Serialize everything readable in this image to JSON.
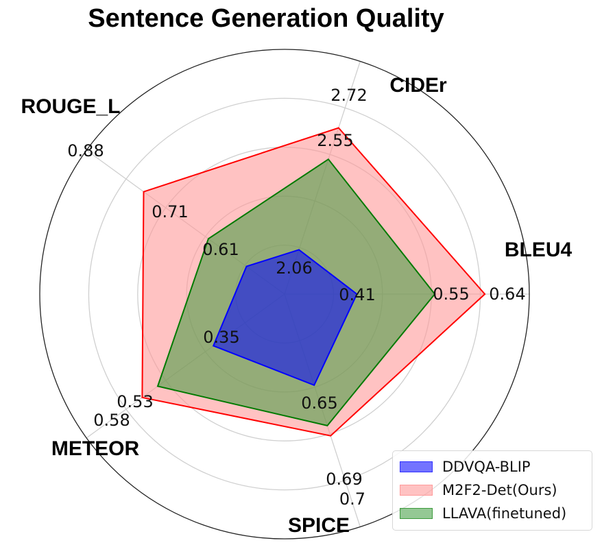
{
  "chart_data": {
    "type": "radar",
    "title": "Sentence Generation Quality",
    "axes": [
      {
        "name": "BLEU4",
        "min": 0.28,
        "max": 0.72
      },
      {
        "name": "CIDEr",
        "min": 1.82,
        "max": 3.08
      },
      {
        "name": "ROUGE_L",
        "min": 0.51,
        "max": 1.03
      },
      {
        "name": "METEOR",
        "min": 0.12,
        "max": 0.76
      },
      {
        "name": "SPICE",
        "min": 0.56,
        "max": 0.79
      }
    ],
    "series": [
      {
        "name": "DDVQA-BLIP",
        "values": [
          0.41,
          2.06,
          0.61,
          0.35,
          0.65
        ],
        "value_labels": [
          "0.41",
          "2.06",
          "0.61",
          "0.35",
          "0.65"
        ],
        "color": "#0000ff",
        "fill": "#0000ff",
        "fill_opacity": 0.55
      },
      {
        "name": "M2F2-Det(Ours)",
        "values": [
          0.64,
          2.72,
          0.88,
          0.58,
          0.7
        ],
        "value_labels": [
          "0.64",
          "2.72",
          "0.88",
          "0.58",
          "0.7"
        ],
        "color": "#ff0000",
        "fill": "#ff9999",
        "fill_opacity": 0.6
      },
      {
        "name": "LLAVA(finetuned)",
        "values": [
          0.55,
          2.55,
          0.71,
          0.53,
          0.69
        ],
        "value_labels": [
          "0.55",
          "2.55",
          "0.71",
          "0.53",
          "0.69"
        ],
        "color": "#007a00",
        "fill": "#3c9a3c",
        "fill_opacity": 0.55
      }
    ],
    "grid": true,
    "legend_position": "bottom-right"
  }
}
